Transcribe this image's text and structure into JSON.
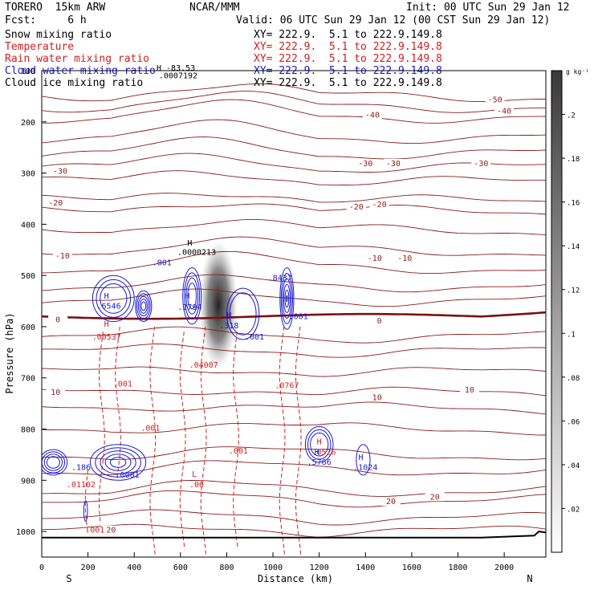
{
  "header": {
    "model": "TORERO  15km ARW",
    "center": "NCAR/MMM",
    "init": "Init: 00 UTC Sun 29 Jan 12",
    "fcst": "Fcst:     6 h",
    "valid": "Valid: 06 UTC Sun 29 Jan 12 (00 CST Sun 29 Jan 12)",
    "fields": [
      {
        "name": "Snow mixing ratio",
        "xy": "XY= 222.9.  5.1 to 222.9.149.8",
        "color": "#000000"
      },
      {
        "name": "Temperature",
        "xy": "XY= 222.9.  5.1 to 222.9.149.8",
        "color": "#d21e1e"
      },
      {
        "name": "Rain water mixing ratio",
        "xy": "XY= 222.9.  5.1 to 222.9.149.8",
        "color": "#d21e1e"
      },
      {
        "name": "Cloud water mixing ratio",
        "xy": "XY= 222.9.  5.1 to 222.9.149.8",
        "color": "#1a1ad2"
      },
      {
        "name": "Cloud ice mixing ratio",
        "xy": "XY= 222.9.  5.1 to 222.9.149.8",
        "color": "#000000"
      }
    ]
  },
  "chart_data": {
    "type": "contour cross-section",
    "xlabel": "Distance (km)",
    "ylabel": "Pressure (hPa)",
    "xlim": [
      0,
      2180
    ],
    "ylim": [
      1050,
      100
    ],
    "x_ticks": [
      0,
      200,
      400,
      600,
      800,
      1000,
      1200,
      1400,
      1600,
      1800,
      2000
    ],
    "y_ticks": [
      100,
      200,
      300,
      400,
      500,
      600,
      700,
      800,
      900,
      1000
    ],
    "x_end_labels": {
      "left": "S",
      "right": "N"
    },
    "grid": false,
    "colorbar": {
      "unit": "g kg⁻¹",
      "ticks": [
        ".2",
        ".18",
        ".16",
        ".14",
        ".12",
        ".1",
        ".08",
        ".06",
        ".04",
        ".02"
      ],
      "tick_values": [
        0.2,
        0.18,
        0.16,
        0.14,
        0.12,
        0.1,
        0.08,
        0.06,
        0.04,
        0.02
      ]
    },
    "temperature_labels": [
      {
        "x": 1960,
        "p": 160,
        "text": "-50"
      },
      {
        "x": 2000,
        "p": 182,
        "text": "-40"
      },
      {
        "x": 1430,
        "p": 190,
        "text": "-40"
      },
      {
        "x": 1900,
        "p": 285,
        "text": "-30"
      },
      {
        "x": 1400,
        "p": 285,
        "text": "-30"
      },
      {
        "x": 1520,
        "p": 285,
        "text": "-30"
      },
      {
        "x": 80,
        "p": 300,
        "text": "-30"
      },
      {
        "x": 60,
        "p": 362,
        "text": "-20"
      },
      {
        "x": 1360,
        "p": 370,
        "text": "-20"
      },
      {
        "x": 1460,
        "p": 365,
        "text": "-20"
      },
      {
        "x": 90,
        "p": 465,
        "text": "-10"
      },
      {
        "x": 1440,
        "p": 470,
        "text": "-10"
      },
      {
        "x": 1570,
        "p": 470,
        "text": "-10"
      },
      {
        "x": 70,
        "p": 590,
        "text": "0"
      },
      {
        "x": 1460,
        "p": 592,
        "text": "0"
      },
      {
        "x": 60,
        "p": 732,
        "text": "10"
      },
      {
        "x": 1450,
        "p": 742,
        "text": "10"
      },
      {
        "x": 1850,
        "p": 727,
        "text": "10"
      },
      {
        "x": 300,
        "p": 1001,
        "text": "20"
      },
      {
        "x": 1510,
        "p": 945,
        "text": "20"
      },
      {
        "x": 1700,
        "p": 936,
        "text": "20"
      }
    ],
    "rain_labels": [
      {
        "x": 280,
        "p": 600,
        "text": "H"
      },
      {
        "x": 280,
        "p": 625,
        "text": ".00537"
      },
      {
        "x": 350,
        "p": 717,
        "text": ".001"
      },
      {
        "x": 470,
        "p": 803,
        "text": ".001"
      },
      {
        "x": 700,
        "p": 680,
        "text": ".04007"
      },
      {
        "x": 850,
        "p": 848,
        "text": ".001"
      },
      {
        "x": 1060,
        "p": 720,
        "text": ".0767"
      },
      {
        "x": 660,
        "p": 893,
        "text": "L"
      },
      {
        "x": 670,
        "p": 914,
        "text": ".00"
      },
      {
        "x": 170,
        "p": 914,
        "text": ".01102"
      },
      {
        "x": 230,
        "p": 1002,
        "text": ".001"
      },
      {
        "x": 1200,
        "p": 830,
        "text": "H"
      },
      {
        "x": 1220,
        "p": 850,
        "text": ".0526"
      }
    ],
    "cloud_water_labels": [
      {
        "x": 280,
        "p": 545,
        "text": "H"
      },
      {
        "x": 290,
        "p": 565,
        "text": ".6546"
      },
      {
        "x": 520,
        "p": 480,
        "text": ".001"
      },
      {
        "x": 630,
        "p": 545,
        "text": "H"
      },
      {
        "x": 640,
        "p": 567,
        "text": ".2794"
      },
      {
        "x": 810,
        "p": 583,
        "text": "H"
      },
      {
        "x": 810,
        "p": 603,
        "text": ".318"
      },
      {
        "x": 920,
        "p": 625,
        "text": ".001"
      },
      {
        "x": 1030,
        "p": 510,
        "text": ".8437"
      },
      {
        "x": 1110,
        "p": 585,
        "text": ".001"
      },
      {
        "x": 170,
        "p": 880,
        "text": ".186"
      },
      {
        "x": 370,
        "p": 895,
        "text": ".0001"
      },
      {
        "x": 1190,
        "p": 850,
        "text": "H"
      },
      {
        "x": 1200,
        "p": 870,
        "text": ".5766"
      },
      {
        "x": 1380,
        "p": 860,
        "text": "H"
      },
      {
        "x": 1400,
        "p": 880,
        "text": ".1024"
      }
    ],
    "cloud_ice_labels": [
      {
        "x": 640,
        "p": 442,
        "text": "H"
      },
      {
        "x": 670,
        "p": 460,
        "text": ".0000213"
      },
      {
        "x": 580,
        "p": 100,
        "text": "H  -83.53"
      },
      {
        "x": 590,
        "p": 115,
        "text": ".0007192"
      }
    ],
    "freezing_level_approx_hPa": 580,
    "snow_max_region": {
      "x": [
        730,
        800
      ],
      "p": [
        480,
        650
      ]
    }
  }
}
